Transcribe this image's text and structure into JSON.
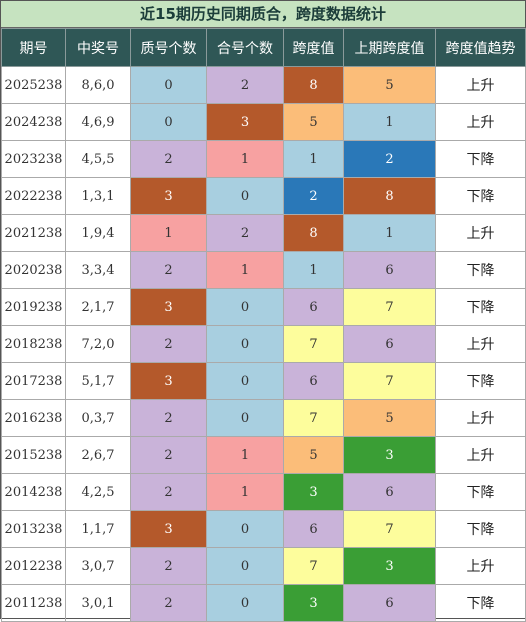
{
  "header": {
    "title": "近15期历史同期质合，跨度数据统计"
  },
  "table": {
    "columns": [
      "期号",
      "中奖号",
      "质号个数",
      "合号个数",
      "跨度值",
      "上期跨度值",
      "跨度值趋势"
    ],
    "rows": [
      [
        "2025238",
        "8,6,0",
        0,
        2,
        8,
        5,
        "上升"
      ],
      [
        "2024238",
        "4,6,9",
        0,
        3,
        5,
        1,
        "上升"
      ],
      [
        "2023238",
        "4,5,5",
        2,
        1,
        1,
        2,
        "下降"
      ],
      [
        "2022238",
        "1,3,1",
        3,
        0,
        2,
        8,
        "下降"
      ],
      [
        "2021238",
        "1,9,4",
        1,
        2,
        8,
        1,
        "上升"
      ],
      [
        "2020238",
        "3,3,4",
        2,
        1,
        1,
        6,
        "下降"
      ],
      [
        "2019238",
        "2,1,7",
        3,
        0,
        6,
        7,
        "下降"
      ],
      [
        "2018238",
        "7,2,0",
        2,
        0,
        7,
        6,
        "上升"
      ],
      [
        "2017238",
        "5,1,7",
        3,
        0,
        6,
        7,
        "下降"
      ],
      [
        "2016238",
        "0,3,7",
        2,
        0,
        7,
        5,
        "上升"
      ],
      [
        "2015238",
        "2,6,7",
        2,
        1,
        5,
        3,
        "上升"
      ],
      [
        "2014238",
        "4,2,5",
        2,
        1,
        3,
        6,
        "下降"
      ],
      [
        "2013238",
        "1,1,7",
        3,
        0,
        6,
        7,
        "下降"
      ],
      [
        "2012238",
        "3,0,7",
        2,
        0,
        7,
        3,
        "上升"
      ],
      [
        "2011238",
        "3,0,1",
        2,
        0,
        3,
        6,
        "下降"
      ]
    ],
    "count_colors": {
      "0": "#a8cfe0",
      "1": "#f7a1a1",
      "2": "#c9b3d9",
      "3": "#b4592b"
    },
    "span_colors": {
      "1": "#a8cfe0",
      "2": "#2a78b8",
      "3": "#3a9e35",
      "5": "#fbbd79",
      "6": "#c9b3d9",
      "7": "#fdfd9c",
      "8": "#b4592b"
    }
  }
}
